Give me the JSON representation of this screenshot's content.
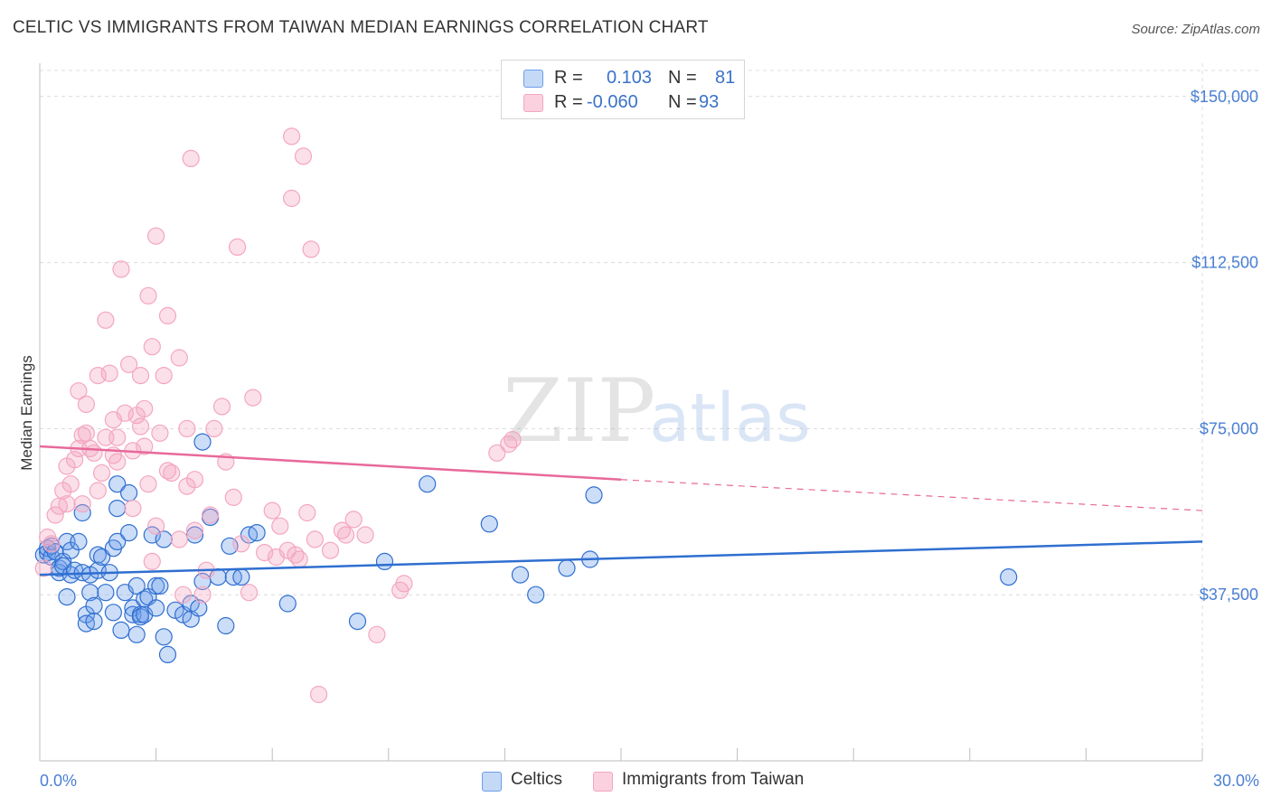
{
  "header": {
    "title": "CELTIC VS IMMIGRANTS FROM TAIWAN MEDIAN EARNINGS CORRELATION CHART",
    "source": "Source: ZipAtlas.com"
  },
  "legend": {
    "rows": [
      {
        "r_label": "R =",
        "r_value": "0.103",
        "n_label": "N =",
        "n_value": "81"
      },
      {
        "r_label": "R =",
        "r_value": "-0.060",
        "n_label": "N =",
        "n_value": "93"
      }
    ]
  },
  "bottom_legend": {
    "series_a": "Celtics",
    "series_b": "Immigrants from Taiwan"
  },
  "watermark": {
    "zip": "ZIP",
    "atlas": "atlas"
  },
  "chart_data": {
    "type": "scatter",
    "title": "CELTIC VS IMMIGRANTS FROM TAIWAN MEDIAN EARNINGS CORRELATION CHART",
    "xlabel": "",
    "ylabel": "Median Earnings",
    "xlim": [
      0,
      30
    ],
    "ylim": [
      0,
      157500
    ],
    "x_tick_labels": [
      "0.0%",
      "30.0%"
    ],
    "y_ticks": [
      37500,
      75000,
      112500,
      150000
    ],
    "y_tick_labels": [
      "$37,500",
      "$75,000",
      "$112,500",
      "$150,000"
    ],
    "colors": {
      "celtics": "#6d9eeb",
      "taiwan": "#f4a6c0",
      "celtics_line": "#2f6fd0",
      "taiwan_line": "#e8699a"
    },
    "series": [
      {
        "name": "Celtics",
        "trend": {
          "x0": 0,
          "y0": 42000,
          "x1": 30,
          "y1": 49500
        },
        "points": [
          [
            0.1,
            46500
          ],
          [
            0.2,
            47000
          ],
          [
            0.2,
            48000
          ],
          [
            0.3,
            46000
          ],
          [
            0.3,
            48500
          ],
          [
            0.4,
            47200
          ],
          [
            0.5,
            43500
          ],
          [
            0.5,
            42500
          ],
          [
            0.6,
            45000
          ],
          [
            0.6,
            44000
          ],
          [
            0.7,
            49500
          ],
          [
            0.7,
            37000
          ],
          [
            0.8,
            47500
          ],
          [
            0.8,
            42000
          ],
          [
            0.9,
            43000
          ],
          [
            1.0,
            49500
          ],
          [
            1.1,
            56000
          ],
          [
            1.1,
            42500
          ],
          [
            1.2,
            33000
          ],
          [
            1.2,
            31000
          ],
          [
            1.3,
            38000
          ],
          [
            1.3,
            42000
          ],
          [
            1.4,
            35000
          ],
          [
            1.4,
            31500
          ],
          [
            1.5,
            46500
          ],
          [
            1.5,
            43000
          ],
          [
            1.6,
            46000
          ],
          [
            1.7,
            38000
          ],
          [
            1.8,
            42500
          ],
          [
            1.9,
            33500
          ],
          [
            1.9,
            48000
          ],
          [
            2.0,
            49500
          ],
          [
            2.0,
            57000
          ],
          [
            2.0,
            62500
          ],
          [
            2.1,
            29500
          ],
          [
            2.2,
            38000
          ],
          [
            2.3,
            60500
          ],
          [
            2.3,
            51500
          ],
          [
            2.4,
            34500
          ],
          [
            2.4,
            33000
          ],
          [
            2.5,
            39500
          ],
          [
            2.5,
            28500
          ],
          [
            2.6,
            33000
          ],
          [
            2.6,
            32500
          ],
          [
            2.7,
            36500
          ],
          [
            2.7,
            33000
          ],
          [
            2.8,
            37000
          ],
          [
            2.9,
            51000
          ],
          [
            3.0,
            39500
          ],
          [
            3.0,
            34500
          ],
          [
            3.1,
            39500
          ],
          [
            3.2,
            50000
          ],
          [
            3.2,
            28000
          ],
          [
            3.3,
            24000
          ],
          [
            3.5,
            34000
          ],
          [
            3.7,
            33000
          ],
          [
            3.9,
            32000
          ],
          [
            3.9,
            35500
          ],
          [
            4.0,
            51000
          ],
          [
            4.1,
            34500
          ],
          [
            4.2,
            72000
          ],
          [
            4.2,
            40500
          ],
          [
            4.4,
            55000
          ],
          [
            4.6,
            41500
          ],
          [
            4.8,
            30500
          ],
          [
            4.9,
            48500
          ],
          [
            5.0,
            41500
          ],
          [
            5.2,
            41500
          ],
          [
            5.4,
            51000
          ],
          [
            5.6,
            51500
          ],
          [
            6.4,
            35500
          ],
          [
            8.2,
            31500
          ],
          [
            8.9,
            45000
          ],
          [
            10.0,
            62500
          ],
          [
            11.6,
            53500
          ],
          [
            12.4,
            42000
          ],
          [
            12.8,
            37500
          ],
          [
            14.2,
            45500
          ],
          [
            14.3,
            60000
          ],
          [
            25.0,
            41500
          ],
          [
            13.6,
            43500
          ]
        ]
      },
      {
        "name": "Immigrants from Taiwan",
        "trend": {
          "x0": 0,
          "y0": 71000,
          "x1": 15,
          "y1": 63500,
          "dash_x1": 30,
          "dash_y1": 56500
        },
        "points": [
          [
            0.1,
            43500
          ],
          [
            0.2,
            50500
          ],
          [
            0.3,
            49000
          ],
          [
            0.4,
            55500
          ],
          [
            0.5,
            57500
          ],
          [
            0.6,
            61000
          ],
          [
            0.7,
            66500
          ],
          [
            0.7,
            58000
          ],
          [
            0.8,
            62500
          ],
          [
            0.9,
            68000
          ],
          [
            1.0,
            70500
          ],
          [
            1.0,
            83500
          ],
          [
            1.1,
            73500
          ],
          [
            1.1,
            58000
          ],
          [
            1.2,
            74000
          ],
          [
            1.2,
            80500
          ],
          [
            1.4,
            69500
          ],
          [
            1.5,
            61000
          ],
          [
            1.5,
            87000
          ],
          [
            1.6,
            65000
          ],
          [
            1.7,
            99500
          ],
          [
            1.7,
            73000
          ],
          [
            1.8,
            87500
          ],
          [
            1.9,
            77000
          ],
          [
            1.9,
            69000
          ],
          [
            2.0,
            73000
          ],
          [
            2.0,
            67500
          ],
          [
            2.1,
            111000
          ],
          [
            2.2,
            78500
          ],
          [
            2.3,
            89500
          ],
          [
            2.4,
            57000
          ],
          [
            2.4,
            70000
          ],
          [
            2.5,
            78000
          ],
          [
            2.6,
            87000
          ],
          [
            2.7,
            79500
          ],
          [
            2.7,
            71000
          ],
          [
            2.8,
            62500
          ],
          [
            2.8,
            105000
          ],
          [
            2.9,
            93500
          ],
          [
            2.9,
            45000
          ],
          [
            3.0,
            118500
          ],
          [
            3.0,
            53000
          ],
          [
            3.1,
            74000
          ],
          [
            3.2,
            87000
          ],
          [
            3.3,
            100500
          ],
          [
            3.3,
            65500
          ],
          [
            3.4,
            65000
          ],
          [
            3.6,
            91000
          ],
          [
            3.6,
            50000
          ],
          [
            3.7,
            37500
          ],
          [
            3.8,
            62000
          ],
          [
            3.8,
            75000
          ],
          [
            3.9,
            136000
          ],
          [
            4.0,
            63500
          ],
          [
            4.0,
            52000
          ],
          [
            4.2,
            37500
          ],
          [
            4.3,
            43000
          ],
          [
            4.4,
            55500
          ],
          [
            4.5,
            75000
          ],
          [
            4.7,
            80000
          ],
          [
            4.8,
            67500
          ],
          [
            5.0,
            59500
          ],
          [
            5.1,
            116000
          ],
          [
            5.2,
            49000
          ],
          [
            5.5,
            82000
          ],
          [
            5.8,
            47000
          ],
          [
            6.0,
            56500
          ],
          [
            6.1,
            46000
          ],
          [
            6.4,
            47500
          ],
          [
            6.5,
            127000
          ],
          [
            6.5,
            141000
          ],
          [
            6.6,
            46500
          ],
          [
            6.7,
            45500
          ],
          [
            6.8,
            136500
          ],
          [
            6.9,
            56000
          ],
          [
            7.0,
            115500
          ],
          [
            7.1,
            50000
          ],
          [
            7.2,
            15000
          ],
          [
            7.8,
            52000
          ],
          [
            7.9,
            51000
          ],
          [
            8.1,
            54500
          ],
          [
            8.4,
            51000
          ],
          [
            8.7,
            28500
          ],
          [
            9.3,
            38500
          ],
          [
            9.4,
            40000
          ],
          [
            11.8,
            69500
          ],
          [
            12.1,
            71500
          ],
          [
            12.2,
            72500
          ],
          [
            7.5,
            47500
          ],
          [
            6.2,
            53000
          ],
          [
            5.4,
            38000
          ],
          [
            2.6,
            75500
          ],
          [
            1.3,
            70500
          ]
        ]
      }
    ]
  }
}
